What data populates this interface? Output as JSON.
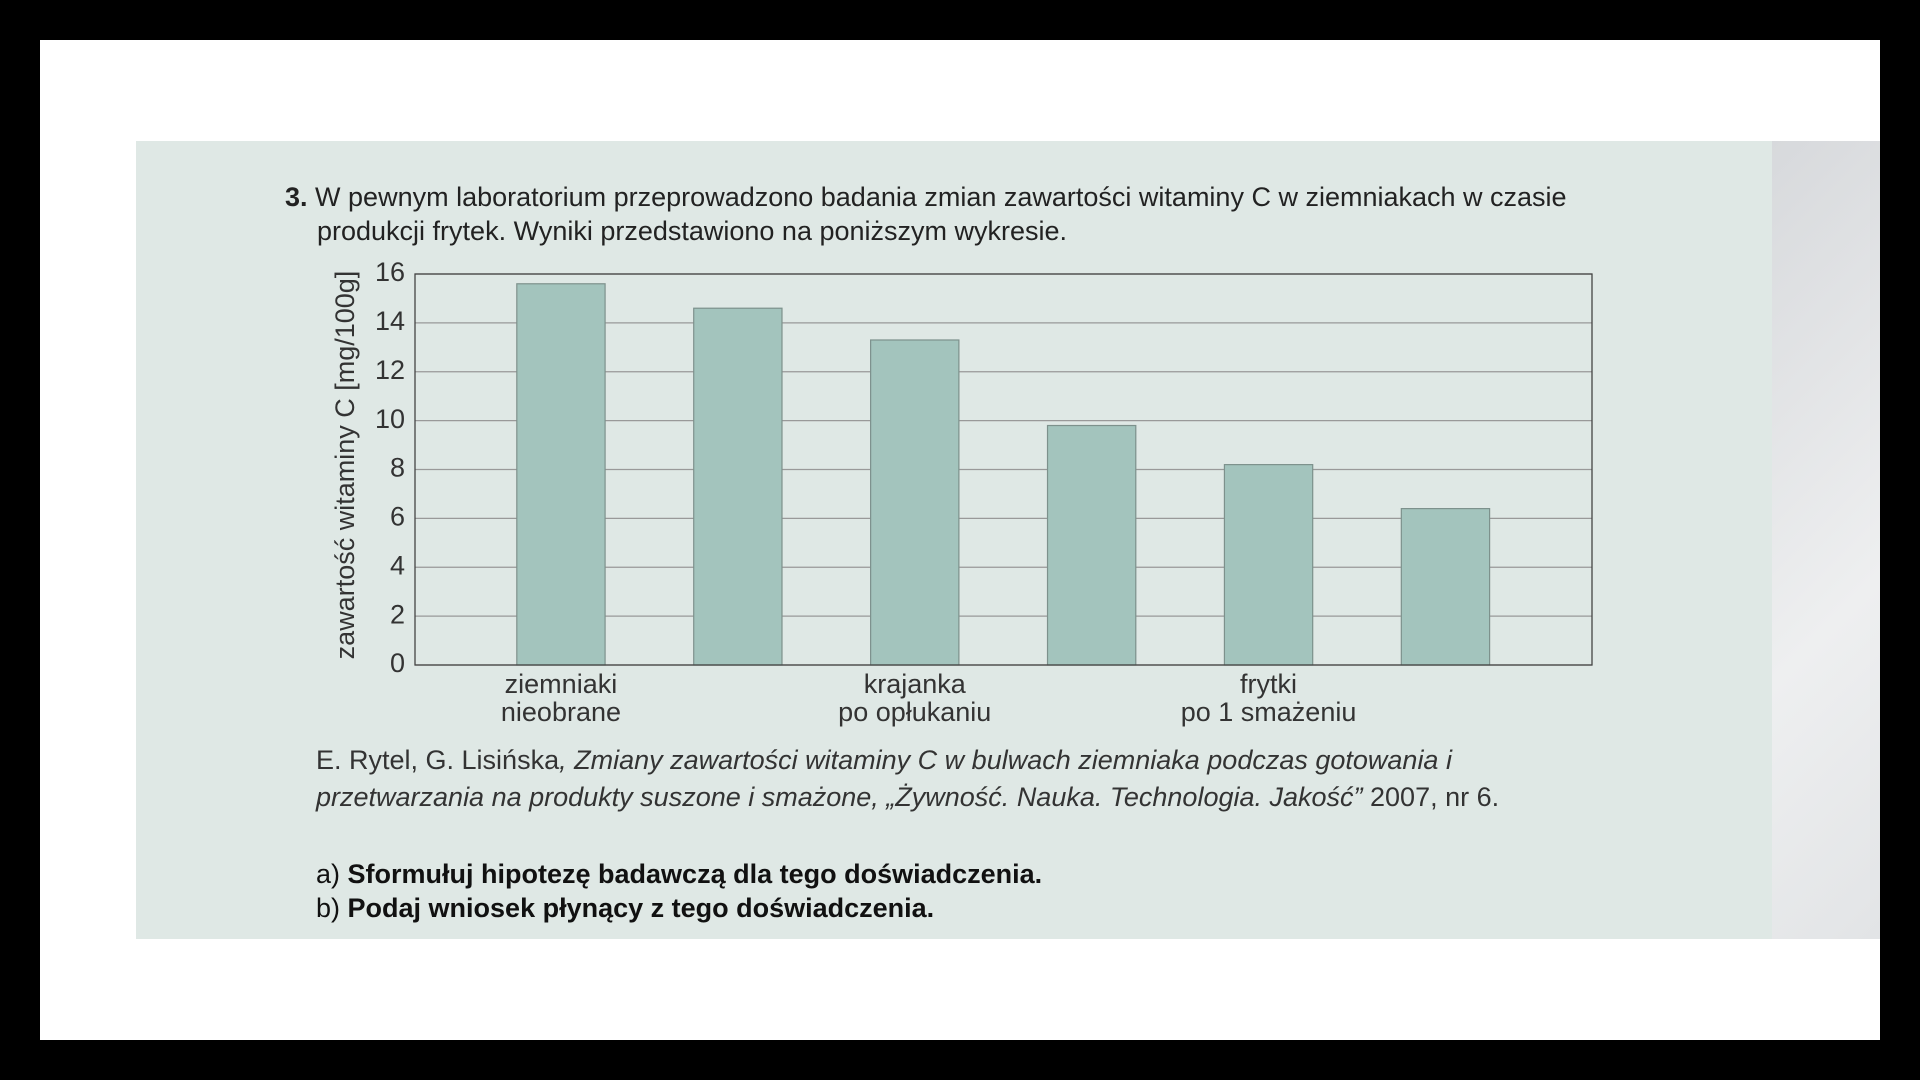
{
  "question": {
    "number": "3.",
    "text": "W pewnym laboratorium przeprowadzono badania zmian zawartości witaminy C w ziemniakach w czasie produkcji frytek. Wyniki przedstawiono na poniższym wykresie."
  },
  "chart_data": {
    "type": "bar",
    "y_label": "zawartość witaminy C [mg/100g]",
    "categories": [
      "ziemniaki\nnieobrane",
      null,
      "krajanka\npo opłukaniu",
      null,
      "frytki\npo 1 smażeniu",
      null
    ],
    "values": [
      15.6,
      14.6,
      13.3,
      9.8,
      8.2,
      6.4
    ],
    "color": "#a3c4bd",
    "ylim": [
      0,
      16
    ],
    "yticks": [
      0,
      2,
      4,
      6,
      8,
      10,
      12,
      14,
      16
    ],
    "grid": true
  },
  "source": {
    "authors": "E. Rytel, G. Lisińska",
    "title": ", Zmiany zawartości witaminy C w bulwach ziemniaka podczas gotowania i przetwarzania na produkty suszone i smażone, „Żywność. Nauka. Technologia. Jakość”",
    "details": " 2007, nr 6."
  },
  "tasks": [
    {
      "letter": "a)",
      "text": "Sformułuj hipotezę badawczą dla tego doświadczenia."
    },
    {
      "letter": "b)",
      "text": "Podaj wniosek płynący z tego doświadczenia."
    }
  ]
}
